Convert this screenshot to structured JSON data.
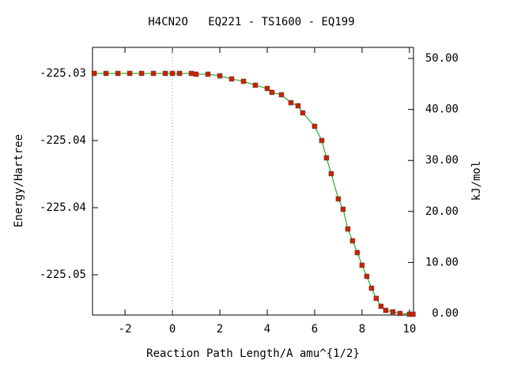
{
  "chart_data": {
    "type": "line",
    "title": "H4CN2O   EQ221 - TS1600 - EQ199",
    "xlabel": "Reaction Path Length/A amu^{1/2}",
    "ylabel": "Energy/Hartree",
    "y2label": "kJ/mol",
    "x": [
      -3.3,
      -2.8,
      -2.3,
      -1.8,
      -1.3,
      -0.8,
      -0.3,
      0,
      0.3,
      0.8,
      1.0,
      1.5,
      2.0,
      2.5,
      3.0,
      3.5,
      4.0,
      4.2,
      4.6,
      5.0,
      5.3,
      5.5,
      6.0,
      6.3,
      6.5,
      6.7,
      7.0,
      7.2,
      7.4,
      7.6,
      7.8,
      8.0,
      8.2,
      8.4,
      8.6,
      8.8,
      9.0,
      9.3,
      9.6,
      10.0,
      10.15
    ],
    "series": [
      {
        "color": "#00a000",
        "marker_color": "#cc2200",
        "values": [
          -225.03,
          -225.03,
          -225.03,
          -225.03,
          -225.03,
          -225.03,
          -225.03,
          -225.03,
          -225.03,
          -225.03,
          -225.03006,
          -225.03006,
          -225.03018,
          -225.03041,
          -225.03059,
          -225.03088,
          -225.03112,
          -225.03141,
          -225.03159,
          -225.03218,
          -225.03241,
          -225.03294,
          -225.03394,
          -225.035,
          -225.03629,
          -225.03747,
          -225.03935,
          -225.04012,
          -225.04159,
          -225.04247,
          -225.04335,
          -225.04429,
          -225.04512,
          -225.046,
          -225.04676,
          -225.04735,
          -225.04765,
          -225.04776,
          -225.04788,
          -225.04794,
          -225.04794
        ]
      }
    ],
    "xlim": [
      -3.37,
      10.17
    ],
    "xticks": [
      -2,
      0,
      2,
      4,
      6,
      8,
      10
    ],
    "ylim": [
      -225.048,
      -225.02806
    ],
    "yticks": [
      -225.03,
      {
        "value": -225.035,
        "label": "-225.04"
      },
      -225.04,
      {
        "value": -225.045,
        "label": "-225.05"
      }
    ],
    "y2lim": [
      -0.31,
      52.17
    ],
    "y2ticks": [
      {
        "value": 0,
        "label": "0.00"
      },
      {
        "value": 10,
        "label": "10.00"
      },
      {
        "value": 20,
        "label": "20.00"
      },
      {
        "value": 30,
        "label": "30.00"
      },
      {
        "value": 40,
        "label": "40.00"
      },
      {
        "value": 50,
        "label": "50.00"
      }
    ]
  }
}
